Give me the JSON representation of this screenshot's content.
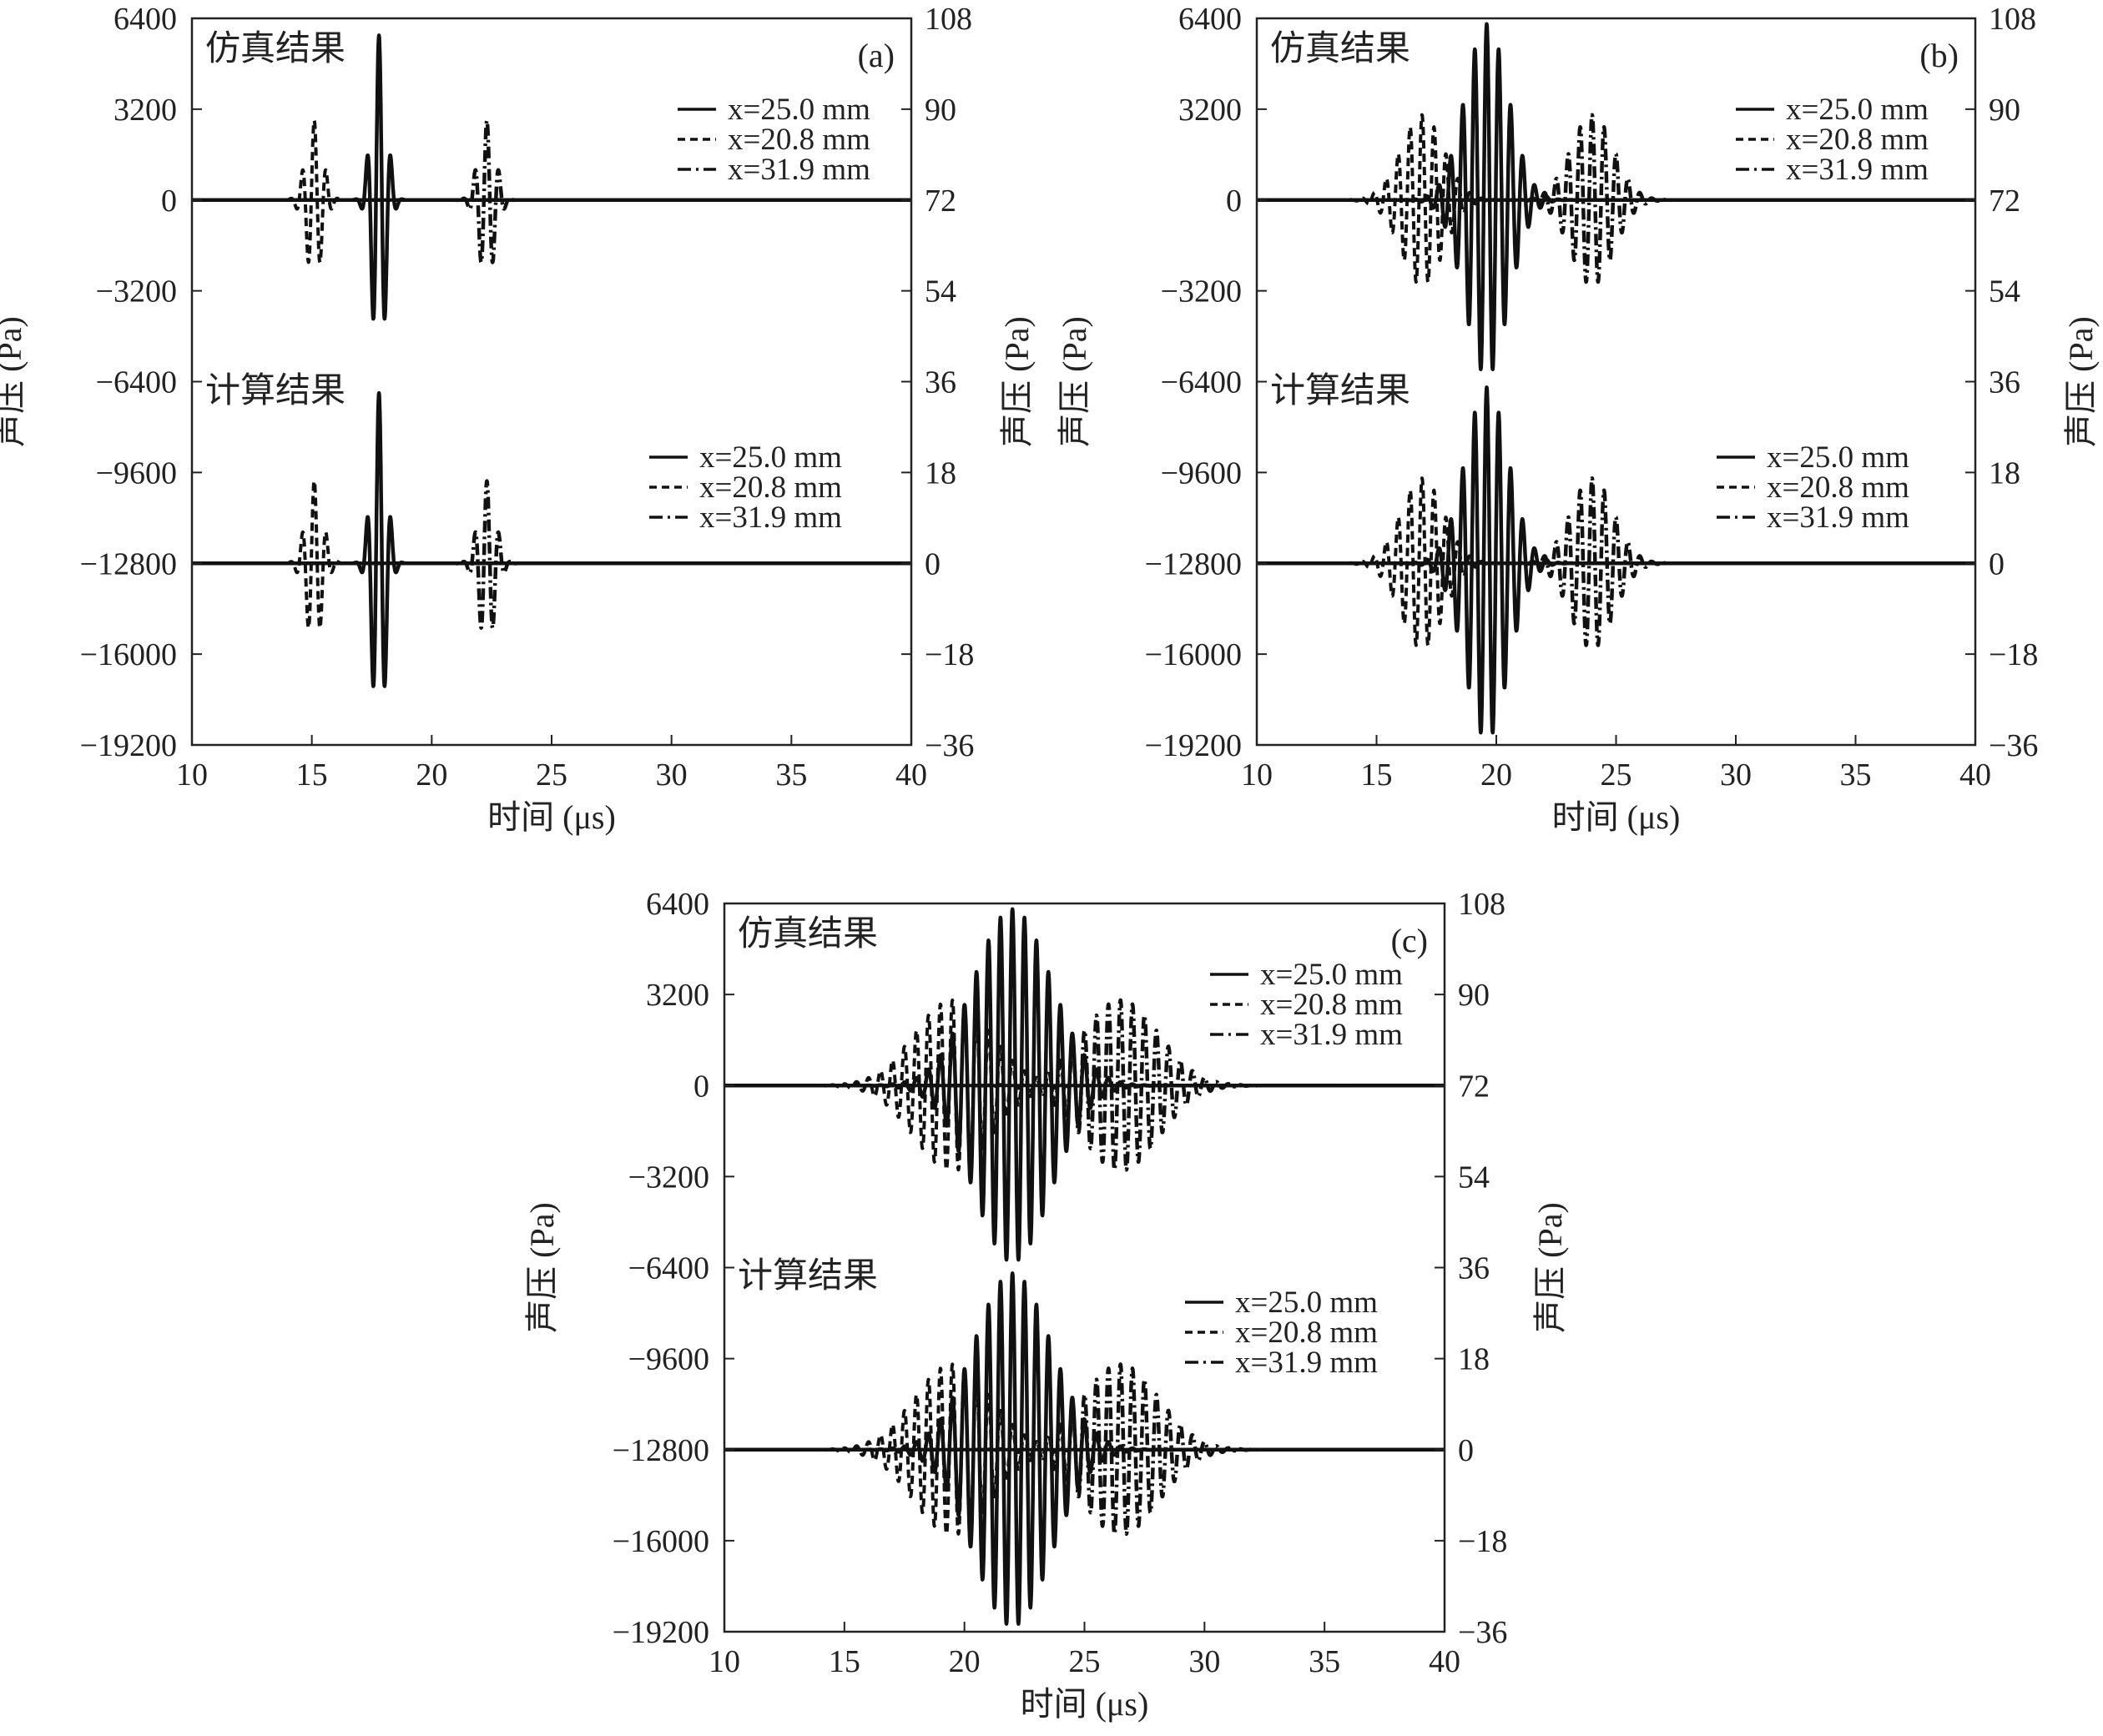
{
  "chart_data": [
    {
      "panel_label": "(a)",
      "type": "line",
      "xlabel": "时间 (μs)",
      "ylabel_left": "声压 (Pa)",
      "ylabel_right": "声压 (Pa)",
      "xlim": [
        10,
        40
      ],
      "xticks": [
        "10",
        "15",
        "20",
        "25",
        "30",
        "35",
        "40"
      ],
      "ylim_left": [
        -19200,
        6400
      ],
      "yticks_left": [
        "6400",
        "3200",
        "0",
        "−3200",
        "−6400",
        "−9600",
        "−12800",
        "−16000",
        "−19200"
      ],
      "ylim_right": [
        -36,
        108
      ],
      "yticks_right": [
        "108",
        "90",
        "72",
        "54",
        "36",
        "18",
        "0",
        "−18",
        "−36"
      ],
      "groups": [
        {
          "label": "仿真结果",
          "axis": "left",
          "baseline": 0,
          "series": [
            {
              "name": "x=25.0 mm",
              "dash": "solid",
              "center": 17.8,
              "sigma": 0.3,
              "period": 0.5,
              "amp": 5800
            },
            {
              "name": "x=20.8 mm",
              "dash": "dashed",
              "center": 15.1,
              "sigma": 0.35,
              "period": 0.5,
              "amp": 2800
            },
            {
              "name": "x=31.9 mm",
              "dash": "dashdot",
              "center": 22.3,
              "sigma": 0.35,
              "period": 0.5,
              "amp": 2800
            }
          ]
        },
        {
          "label": "计算结果",
          "axis": "left",
          "baseline": -12800,
          "series": [
            {
              "name": "x=25.0 mm",
              "dash": "solid",
              "center": 17.8,
              "sigma": 0.3,
              "period": 0.5,
              "amp": 6000
            },
            {
              "name": "x=20.8 mm",
              "dash": "dashed",
              "center": 15.1,
              "sigma": 0.35,
              "period": 0.5,
              "amp": 2900
            },
            {
              "name": "x=31.9 mm",
              "dash": "dashdot",
              "center": 22.3,
              "sigma": 0.35,
              "period": 0.5,
              "amp": 2900
            }
          ]
        }
      ]
    },
    {
      "panel_label": "(b)",
      "type": "line",
      "xlabel": "时间 (μs)",
      "ylabel_left": "声压 (Pa)",
      "ylabel_right": "声压 (Pa)",
      "xlim": [
        10,
        40
      ],
      "xticks": [
        "10",
        "15",
        "20",
        "25",
        "30",
        "35",
        "40"
      ],
      "ylim_left": [
        -19200,
        6400
      ],
      "yticks_left": [
        "6400",
        "3200",
        "0",
        "−3200",
        "−6400",
        "−9600",
        "−12800",
        "−16000",
        "−19200"
      ],
      "ylim_right": [
        -36,
        108
      ],
      "yticks_right": [
        "108",
        "90",
        "72",
        "54",
        "36",
        "18",
        "0",
        "−18",
        "−36"
      ],
      "groups": [
        {
          "label": "仿真结果",
          "axis": "left",
          "baseline": 0,
          "series": [
            {
              "name": "x=25.0 mm",
              "dash": "solid",
              "center": 19.6,
              "sigma": 0.9,
              "period": 0.5,
              "amp": 6200
            },
            {
              "name": "x=20.8 mm",
              "dash": "dashed",
              "center": 16.9,
              "sigma": 0.9,
              "period": 0.5,
              "amp": 3000
            },
            {
              "name": "x=31.9 mm",
              "dash": "dashdot",
              "center": 24.0,
              "sigma": 0.9,
              "period": 0.5,
              "amp": 3000
            }
          ]
        },
        {
          "label": "计算结果",
          "axis": "left",
          "baseline": -12800,
          "series": [
            {
              "name": "x=25.0 mm",
              "dash": "solid",
              "center": 19.6,
              "sigma": 0.9,
              "period": 0.5,
              "amp": 6200
            },
            {
              "name": "x=20.8 mm",
              "dash": "dashed",
              "center": 16.9,
              "sigma": 0.9,
              "period": 0.5,
              "amp": 3000
            },
            {
              "name": "x=31.9 mm",
              "dash": "dashdot",
              "center": 24.0,
              "sigma": 0.9,
              "period": 0.5,
              "amp": 3000
            }
          ]
        }
      ]
    },
    {
      "panel_label": "(c)",
      "type": "line",
      "xlabel": "时间 (μs)",
      "ylabel_left": "声压 (Pa)",
      "ylabel_right": "声压 (Pa)",
      "xlim": [
        10,
        40
      ],
      "xticks": [
        "10",
        "15",
        "20",
        "25",
        "30",
        "35",
        "40"
      ],
      "ylim_left": [
        -19200,
        6400
      ],
      "yticks_left": [
        "6400",
        "3200",
        "0",
        "−3200",
        "−6400",
        "−9600",
        "−12800",
        "−16000",
        "−19200"
      ],
      "ylim_right": [
        -36,
        108
      ],
      "yticks_right": [
        "108",
        "90",
        "72",
        "54",
        "36",
        "18",
        "0",
        "−18",
        "−36"
      ],
      "groups": [
        {
          "label": "仿真结果",
          "axis": "left",
          "baseline": 0,
          "series": [
            {
              "name": "x=25.0 mm",
              "dash": "solid",
              "center": 22.0,
              "sigma": 1.6,
              "period": 0.5,
              "amp": 6200
            },
            {
              "name": "x=20.8 mm",
              "dash": "dashed",
              "center": 19.5,
              "sigma": 1.6,
              "period": 0.5,
              "amp": 3000
            },
            {
              "name": "x=31.9 mm",
              "dash": "dashdot",
              "center": 26.5,
              "sigma": 1.6,
              "period": 0.5,
              "amp": 3000
            }
          ]
        },
        {
          "label": "计算结果",
          "axis": "left",
          "baseline": -12800,
          "series": [
            {
              "name": "x=25.0 mm",
              "dash": "solid",
              "center": 22.0,
              "sigma": 1.6,
              "period": 0.5,
              "amp": 6200
            },
            {
              "name": "x=20.8 mm",
              "dash": "dashed",
              "center": 19.5,
              "sigma": 1.6,
              "period": 0.5,
              "amp": 3000
            },
            {
              "name": "x=31.9 mm",
              "dash": "dashdot",
              "center": 26.5,
              "sigma": 1.6,
              "period": 0.5,
              "amp": 3000
            }
          ]
        }
      ]
    }
  ]
}
